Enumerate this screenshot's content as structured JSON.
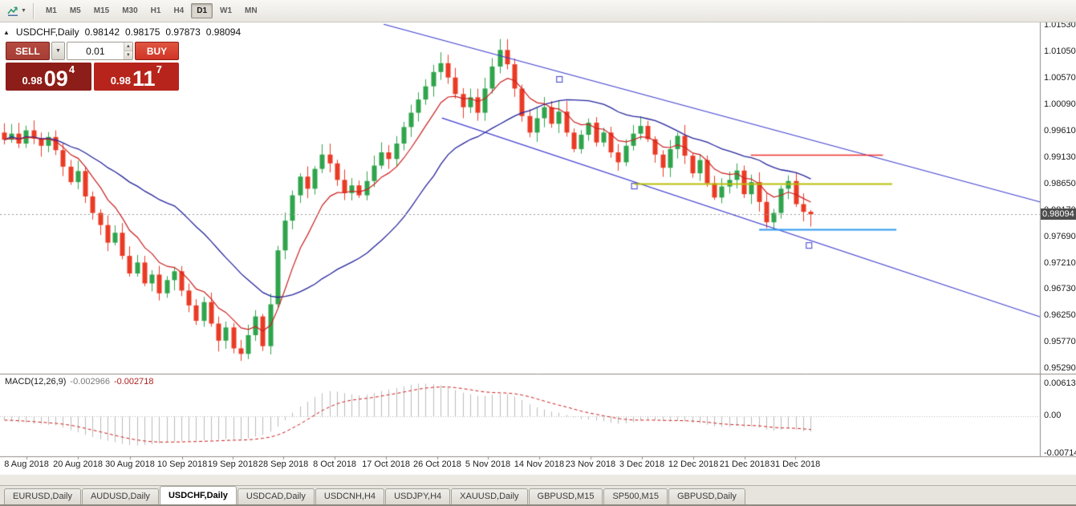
{
  "toolbar": {
    "active_timeframe": "D1",
    "timeframes": [
      "M1",
      "M5",
      "M15",
      "M30",
      "H1",
      "H4",
      "D1",
      "W1",
      "MN"
    ]
  },
  "chart_header": {
    "symbol_label": "USDCHF,Daily",
    "open": "0.98142",
    "high": "0.98175",
    "low": "0.97873",
    "close": "0.98094"
  },
  "trade_panel": {
    "sell_label": "SELL",
    "buy_label": "BUY",
    "lot_size": "0.01",
    "sell_price": {
      "prefix": "0.98",
      "big": "09",
      "sup": "4"
    },
    "buy_price": {
      "prefix": "0.98",
      "big": "11",
      "sup": "7"
    }
  },
  "price_axis": {
    "labels": [
      "1.01530",
      "1.01050",
      "1.00570",
      "1.00090",
      "0.99610",
      "0.99130",
      "0.98650",
      "0.98170",
      "0.97690",
      "0.97210",
      "0.96730",
      "0.96250",
      "0.95770",
      "0.95290"
    ],
    "current_price": "0.98094"
  },
  "macd_panel": {
    "name": "MACD(12,26,9)",
    "macd_value": "-0.002966",
    "signal_value": "-0.002718",
    "axis_labels": [
      "0.006137",
      "0.00",
      "-0.007142"
    ]
  },
  "date_axis": {
    "labels": [
      "8 Aug 2018",
      "20 Aug 2018",
      "30 Aug 2018",
      "10 Sep 2018",
      "19 Sep 2018",
      "28 Sep 2018",
      "8 Oct 2018",
      "17 Oct 2018",
      "26 Oct 2018",
      "5 Nov 2018",
      "14 Nov 2018",
      "23 Nov 2018",
      "3 Dec 2018",
      "12 Dec 2018",
      "21 Dec 2018",
      "31 Dec 2018"
    ],
    "positions": [
      0.0255,
      0.0749,
      0.125,
      0.1752,
      0.2238,
      0.2724,
      0.3218,
      0.3712,
      0.4205,
      0.4691,
      0.5185,
      0.5679,
      0.6173,
      0.6667,
      0.716,
      0.7647
    ]
  },
  "tabs": {
    "active": "USDCHF,Daily",
    "items": [
      "EURUSD,Daily",
      "AUDUSD,Daily",
      "USDCHF,Daily",
      "USDCAD,Daily",
      "USDCNH,H4",
      "USDJPY,H4",
      "XAUUSD,Daily",
      "GBPUSD,M15",
      "SP500,M15",
      "GBPUSD,Daily"
    ]
  },
  "colors": {
    "up": "#2fa44c",
    "down": "#ea3b25",
    "ma_fast": "#cc1f1f",
    "ma_slow": "#24249c",
    "trendline": "#3b3bd0",
    "hline_red": "#ee2f2f",
    "hline_olive": "#b7bf0a",
    "hline_blue": "#2f9bee",
    "macd_bar": "#bcbcbc",
    "macd_signal": "#cc1f1f",
    "price_tag_bg": "#4d4d4d",
    "sell_button": "#a63d34",
    "buy_button": "#cf3526",
    "sell_box": "#8d1d18",
    "buy_box": "#b7241b"
  },
  "chart_data": {
    "type": "candlestick",
    "symbol": "USDCHF",
    "period": "Daily",
    "title": "USDCHF,Daily",
    "ylim": [
      0.952,
      1.0158
    ],
    "plot_right_margin_fraction": 0.217,
    "first_open": 0.9958,
    "closes": [
      0.9945,
      0.9956,
      0.9938,
      0.9962,
      0.9947,
      0.9934,
      0.995,
      0.9926,
      0.9896,
      0.9868,
      0.9888,
      0.9842,
      0.9812,
      0.979,
      0.9758,
      0.9776,
      0.9734,
      0.9702,
      0.9722,
      0.9684,
      0.97,
      0.9666,
      0.969,
      0.9706,
      0.9671,
      0.9644,
      0.9616,
      0.965,
      0.9611,
      0.958,
      0.9604,
      0.9566,
      0.9556,
      0.959,
      0.9624,
      0.957,
      0.9646,
      0.9744,
      0.9798,
      0.9844,
      0.9878,
      0.9856,
      0.9892,
      0.9918,
      0.9902,
      0.9872,
      0.9848,
      0.9862,
      0.9844,
      0.987,
      0.9898,
      0.9922,
      0.991,
      0.9938,
      0.9968,
      0.9994,
      1.0018,
      1.0042,
      1.0068,
      1.0084,
      1.0058,
      1.0028,
      1.0004,
      1.0022,
      0.9994,
      1.0038,
      1.0078,
      1.0108,
      1.0082,
      1.0038,
      0.9988,
      0.9958,
      0.9984,
      1.0004,
      0.9974,
      0.9996,
      0.9958,
      0.9928,
      0.9954,
      0.9976,
      0.994,
      0.9958,
      0.9922,
      0.9904,
      0.9934,
      0.9956,
      0.997,
      0.9946,
      0.9918,
      0.9894,
      0.9928,
      0.9952,
      0.9916,
      0.9884,
      0.9908,
      0.9866,
      0.984,
      0.986,
      0.9872,
      0.9889,
      0.9846,
      0.9868,
      0.9832,
      0.9795,
      0.9812,
      0.9856,
      0.987,
      0.9828,
      0.9814,
      0.98094
    ],
    "last_ohlc": {
      "open": 0.98142,
      "high": 0.98175,
      "low": 0.97873,
      "close": 0.98094
    },
    "ma_fast_period": 8,
    "ma_slow_period": 24,
    "macd": {
      "params": "12,26,9",
      "signal_period": 9,
      "ylim": [
        -0.0078,
        0.0077
      ],
      "current_macd": -0.002966,
      "current_signal": -0.002718,
      "values": [
        -0.0008,
        -0.001,
        -0.0012,
        -0.0013,
        -0.0015,
        -0.0016,
        -0.0017,
        -0.0018,
        -0.0022,
        -0.0027,
        -0.0031,
        -0.0036,
        -0.004,
        -0.0044,
        -0.0047,
        -0.005,
        -0.0053,
        -0.0055,
        -0.0056,
        -0.0055,
        -0.0054,
        -0.0052,
        -0.005,
        -0.0049,
        -0.0048,
        -0.0048,
        -0.0047,
        -0.0046,
        -0.0046,
        -0.0045,
        -0.0044,
        -0.0044,
        -0.0045,
        -0.0043,
        -0.0039,
        -0.0036,
        -0.003,
        -0.002,
        -0.0008,
        0.0006,
        0.0018,
        0.0027,
        0.0036,
        0.0043,
        0.0047,
        0.0046,
        0.0043,
        0.0041,
        0.0039,
        0.004,
        0.0043,
        0.0047,
        0.005,
        0.0053,
        0.0056,
        0.0059,
        0.0061,
        0.0061,
        0.006,
        0.0058,
        0.0054,
        0.0049,
        0.0044,
        0.0041,
        0.0038,
        0.0038,
        0.004,
        0.0042,
        0.0041,
        0.0037,
        0.003,
        0.0022,
        0.0016,
        0.0012,
        0.0008,
        0.0006,
        0.0002,
        -0.0003,
        -0.0006,
        -0.0007,
        -0.0009,
        -0.001,
        -0.0013,
        -0.0015,
        -0.0014,
        -0.0012,
        -0.0009,
        -0.0008,
        -0.0008,
        -0.001,
        -0.001,
        -0.0009,
        -0.001,
        -0.0013,
        -0.0014,
        -0.0017,
        -0.002,
        -0.0021,
        -0.0021,
        -0.0019,
        -0.0021,
        -0.002,
        -0.0022,
        -0.0026,
        -0.0028,
        -0.0026,
        -0.0024,
        -0.0026,
        -0.0029,
        -0.002966
      ]
    },
    "drawings": {
      "trendlines": [
        {
          "x1": 0.369,
          "y1": 0.005,
          "x2": 1.0,
          "y2": 0.511
        },
        {
          "x1": 0.425,
          "y1": 0.272,
          "x2": 1.0,
          "y2": 0.838
        }
      ],
      "handles": [
        [
          0.538,
          0.162
        ],
        [
          0.61,
          0.466
        ],
        [
          0.778,
          0.635
        ]
      ],
      "hlines": [
        {
          "price": 0.9917,
          "x1": 0.722,
          "x2": 0.849,
          "color_key": "hline_red",
          "width": 1.4
        },
        {
          "price": 0.9865,
          "x1": 0.61,
          "x2": 0.858,
          "color_key": "hline_olive",
          "width": 2
        },
        {
          "price": 0.9782,
          "x1": 0.73,
          "x2": 0.862,
          "color_key": "hline_blue",
          "width": 2
        }
      ]
    }
  }
}
